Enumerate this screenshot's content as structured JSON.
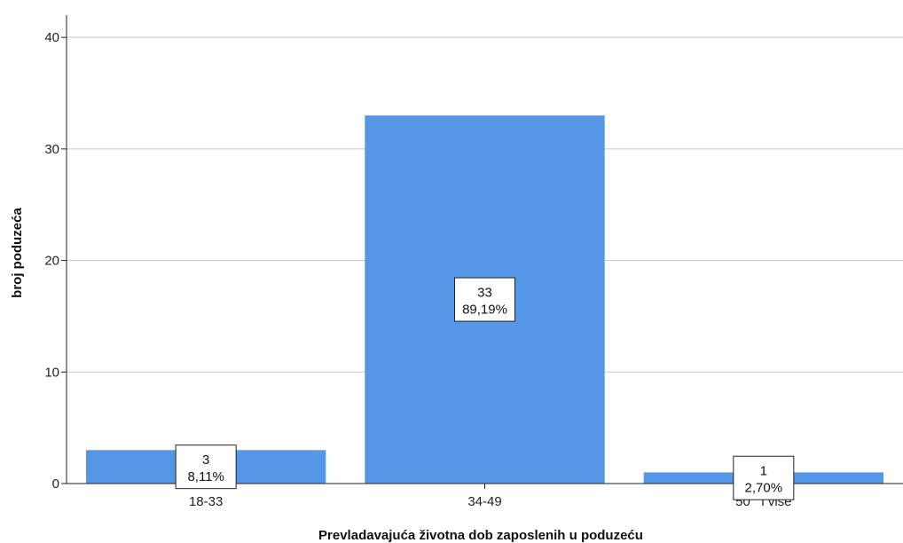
{
  "chart_data": {
    "type": "bar",
    "title": "",
    "xlabel": "Prevladavajuća životna dob zaposlenih u poduzeću",
    "ylabel": "broj poduzeća",
    "categories": [
      "18-33",
      "34-49",
      "50   i više"
    ],
    "values": [
      3,
      33,
      1
    ],
    "percent_labels": [
      "8,11%",
      "89,19%",
      "2,70%"
    ],
    "ylim": [
      0,
      42
    ],
    "yticks": [
      0,
      10,
      20,
      30,
      40
    ],
    "grid": true,
    "bar_color": "#5596e6"
  }
}
